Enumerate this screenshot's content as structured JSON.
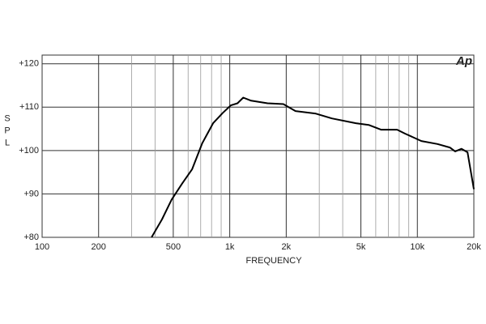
{
  "chart_data": {
    "type": "line",
    "logo": "Ap",
    "x_label": "FREQUENCY",
    "y_label": "SPL",
    "x_log": true,
    "grid": true,
    "color": "#000000",
    "xlim": [
      100,
      20000
    ],
    "ylim": [
      80,
      122
    ],
    "xticks": [
      100,
      200,
      500,
      {
        "value": 1000,
        "label": "1k"
      },
      {
        "value": 2000,
        "label": "2k"
      },
      {
        "value": 5000,
        "label": "5k"
      },
      {
        "value": 10000,
        "label": "10k"
      },
      {
        "value": 20000,
        "label": "20k"
      }
    ],
    "x_minor_grid": [
      300,
      400,
      600,
      700,
      800,
      900,
      3000,
      4000,
      6000,
      7000,
      8000,
      9000
    ],
    "yticks": [
      {
        "value": 80,
        "label": "+80"
      },
      {
        "value": 90,
        "label": "+90"
      },
      {
        "value": 100,
        "label": "+100"
      },
      {
        "value": 110,
        "label": "+110"
      },
      {
        "value": 120,
        "label": "+120"
      }
    ],
    "x": [
      383,
      435,
      490,
      558,
      630,
      714,
      815,
      919,
      1013,
      1100,
      1180,
      1300,
      1590,
      1930,
      2240,
      2880,
      3500,
      4700,
      5500,
      6400,
      7800,
      8600,
      10500,
      12800,
      14900,
      15900,
      17200,
      18500,
      20000
    ],
    "series": [
      {
        "values": [
          80.0,
          84.1,
          88.7,
          92.4,
          95.7,
          101.7,
          106.3,
          108.7,
          110.4,
          110.9,
          112.2,
          111.5,
          110.9,
          110.7,
          109.1,
          108.5,
          107.4,
          106.3,
          105.9,
          104.8,
          104.8,
          103.9,
          102.2,
          101.5,
          100.7,
          99.8,
          100.4,
          99.6,
          91.1
        ]
      }
    ]
  }
}
